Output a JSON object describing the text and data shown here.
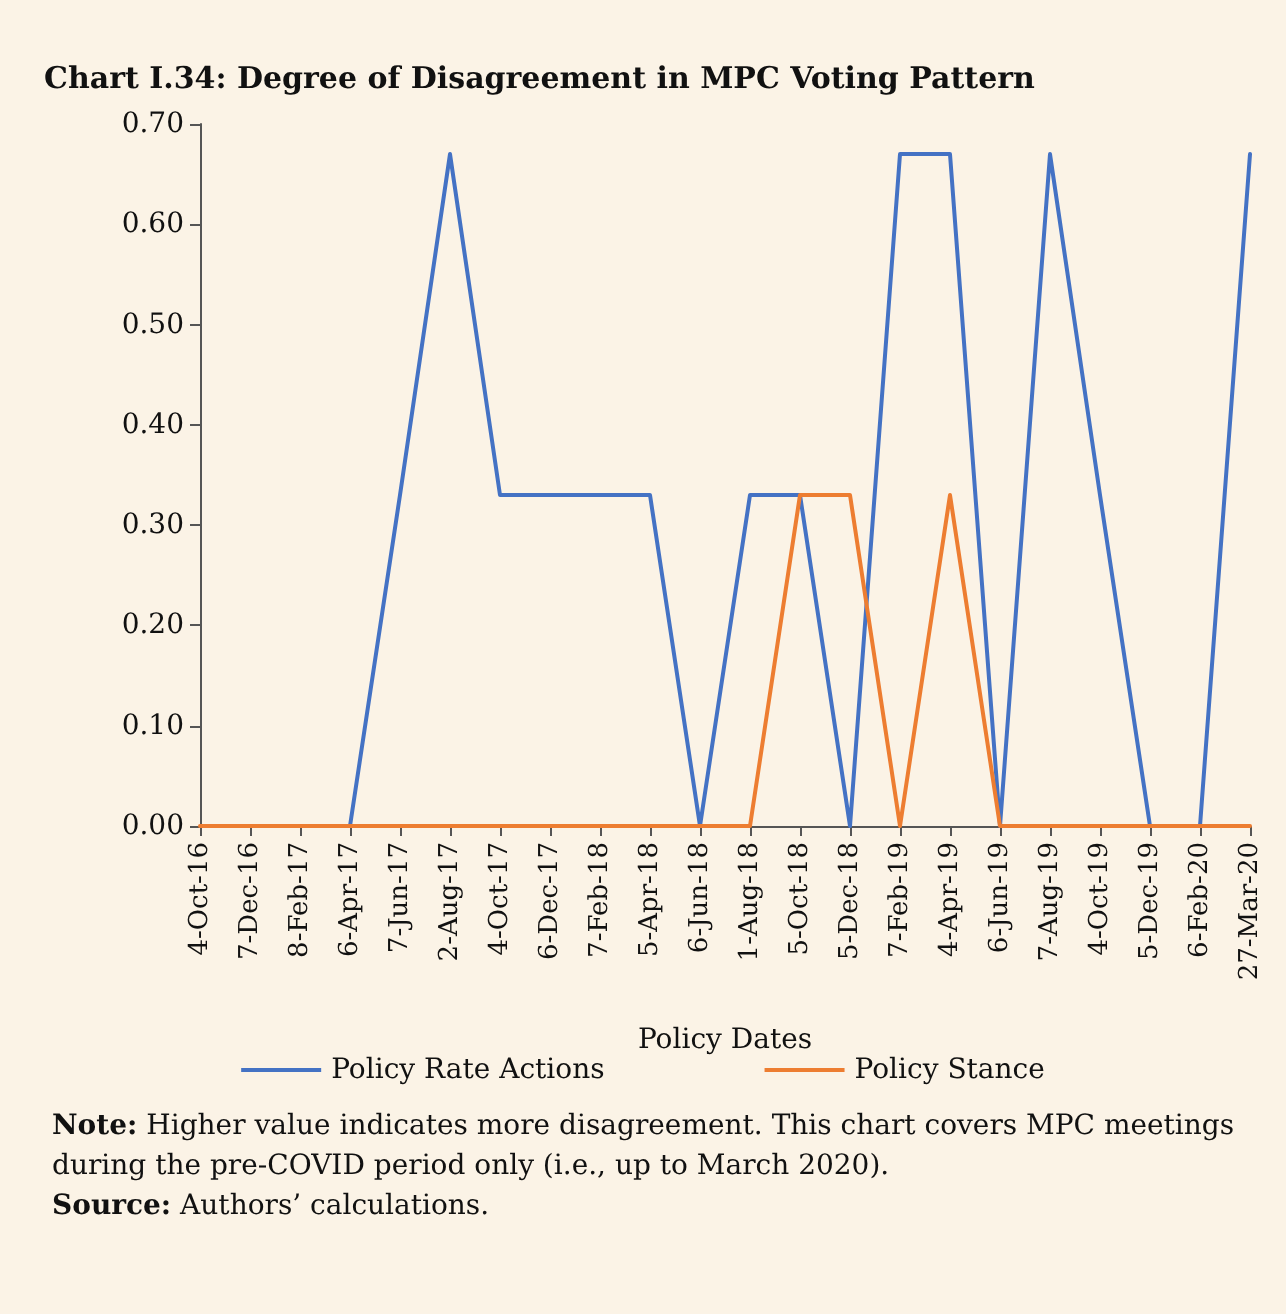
{
  "chart_data": {
    "type": "line",
    "title": "Chart I.34: Degree of Disagreement in MPC Voting Pattern",
    "xlabel": "Policy Dates",
    "categories": [
      "4-Oct-16",
      "7-Dec-16",
      "8-Feb-17",
      "6-Apr-17",
      "7-Jun-17",
      "2-Aug-17",
      "4-Oct-17",
      "6-Dec-17",
      "7-Feb-18",
      "5-Apr-18",
      "6-Jun-18",
      "1-Aug-18",
      "5-Oct-18",
      "5-Dec-18",
      "7-Feb-19",
      "4-Apr-19",
      "6-Jun-19",
      "7-Aug-19",
      "4-Oct-19",
      "5-Dec-19",
      "6-Feb-20",
      "27-Mar-20"
    ],
    "series": [
      {
        "name": "Policy Rate Actions",
        "color": "#4472c4",
        "values": [
          null,
          null,
          null,
          0,
          0.33,
          0.67,
          0.33,
          0.33,
          0.33,
          0.33,
          0,
          0.33,
          0.33,
          0,
          0.67,
          0.67,
          0,
          0.67,
          0.33,
          0,
          0,
          0.67
        ]
      },
      {
        "name": "Policy Stance",
        "color": "#ed7d31",
        "values": [
          0,
          0,
          0,
          0,
          0,
          0,
          0,
          0,
          0,
          0,
          0,
          0,
          0.33,
          0.33,
          0,
          0.33,
          0,
          0,
          0,
          0,
          0,
          0
        ]
      }
    ],
    "ylim": [
      0,
      0.7
    ],
    "yticks": [
      {
        "value": 0,
        "label": "0.00"
      },
      {
        "value": 0.1,
        "label": "0.10"
      },
      {
        "value": 0.2,
        "label": "0.20"
      },
      {
        "value": 0.3,
        "label": "0.30"
      },
      {
        "value": 0.4,
        "label": "0.40"
      },
      {
        "value": 0.5,
        "label": "0.50"
      },
      {
        "value": 0.6,
        "label": "0.60"
      },
      {
        "value": 0.7,
        "label": "0.70"
      }
    ],
    "grid": false,
    "legend": "bottom",
    "marker": "none",
    "line_style": "solid",
    "annotations": [
      "Note: Higher value indicates more disagreement. This chart covers MPC meetings during the pre-COVID period only (i.e., up to March 2020).",
      "Source: Authors’ calculations."
    ]
  }
}
